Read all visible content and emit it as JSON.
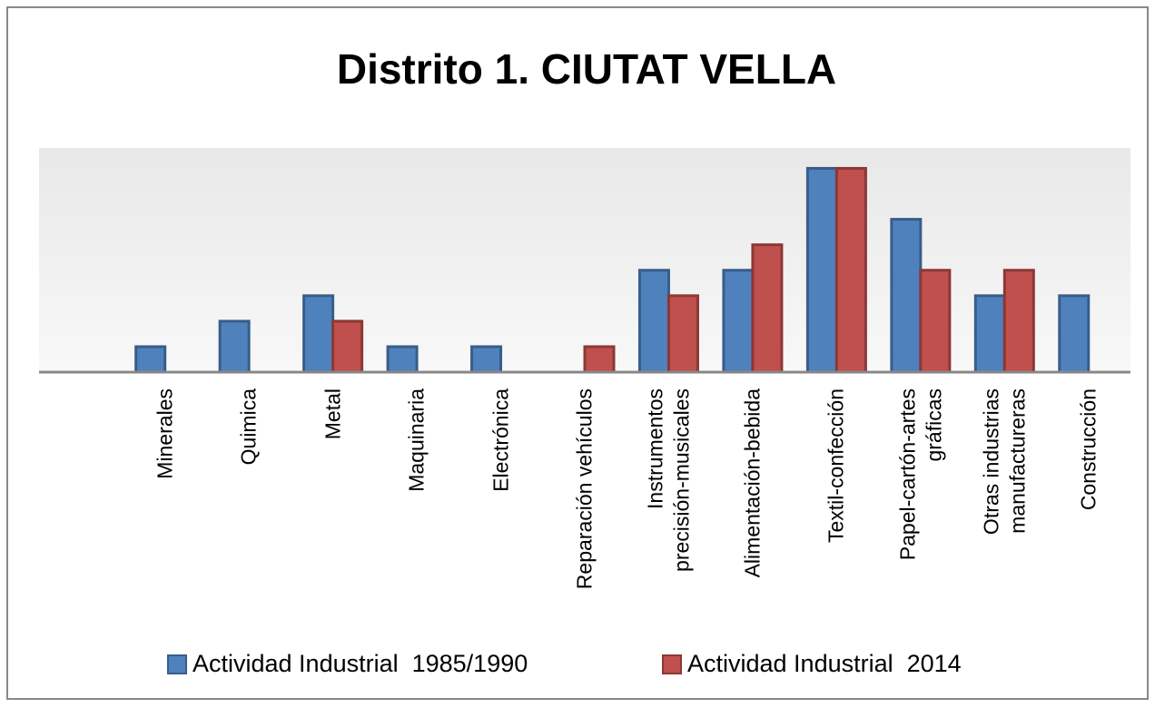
{
  "chart_data": {
    "type": "bar",
    "title": "Distrito 1. CIUTAT VELLA",
    "categories": [
      null,
      "Minerales",
      "Quimica",
      "Metal",
      "Maquinaria",
      "Electrónica",
      "Reparación vehículos",
      "Instrumentos\nprecisión-musicales",
      "Alimentación-bebida",
      "Textil-confección",
      "Papel-cartón-artes\ngráficas",
      "Otras industrias\nmanufactureras",
      "Construcción"
    ],
    "series": [
      {
        "name": "Actividad Industrial  1985/1990",
        "color": "#4f81bd",
        "values": [
          null,
          1,
          2,
          3,
          1,
          1,
          0,
          4,
          4,
          8,
          6,
          3,
          3
        ]
      },
      {
        "name": "Actividad Industrial  2014",
        "color": "#c0504d",
        "values": [
          null,
          0,
          0,
          2,
          0,
          0,
          1,
          3,
          5,
          8,
          4,
          4,
          0
        ]
      }
    ],
    "ylim": [
      0,
      8.8
    ],
    "grid": false
  }
}
